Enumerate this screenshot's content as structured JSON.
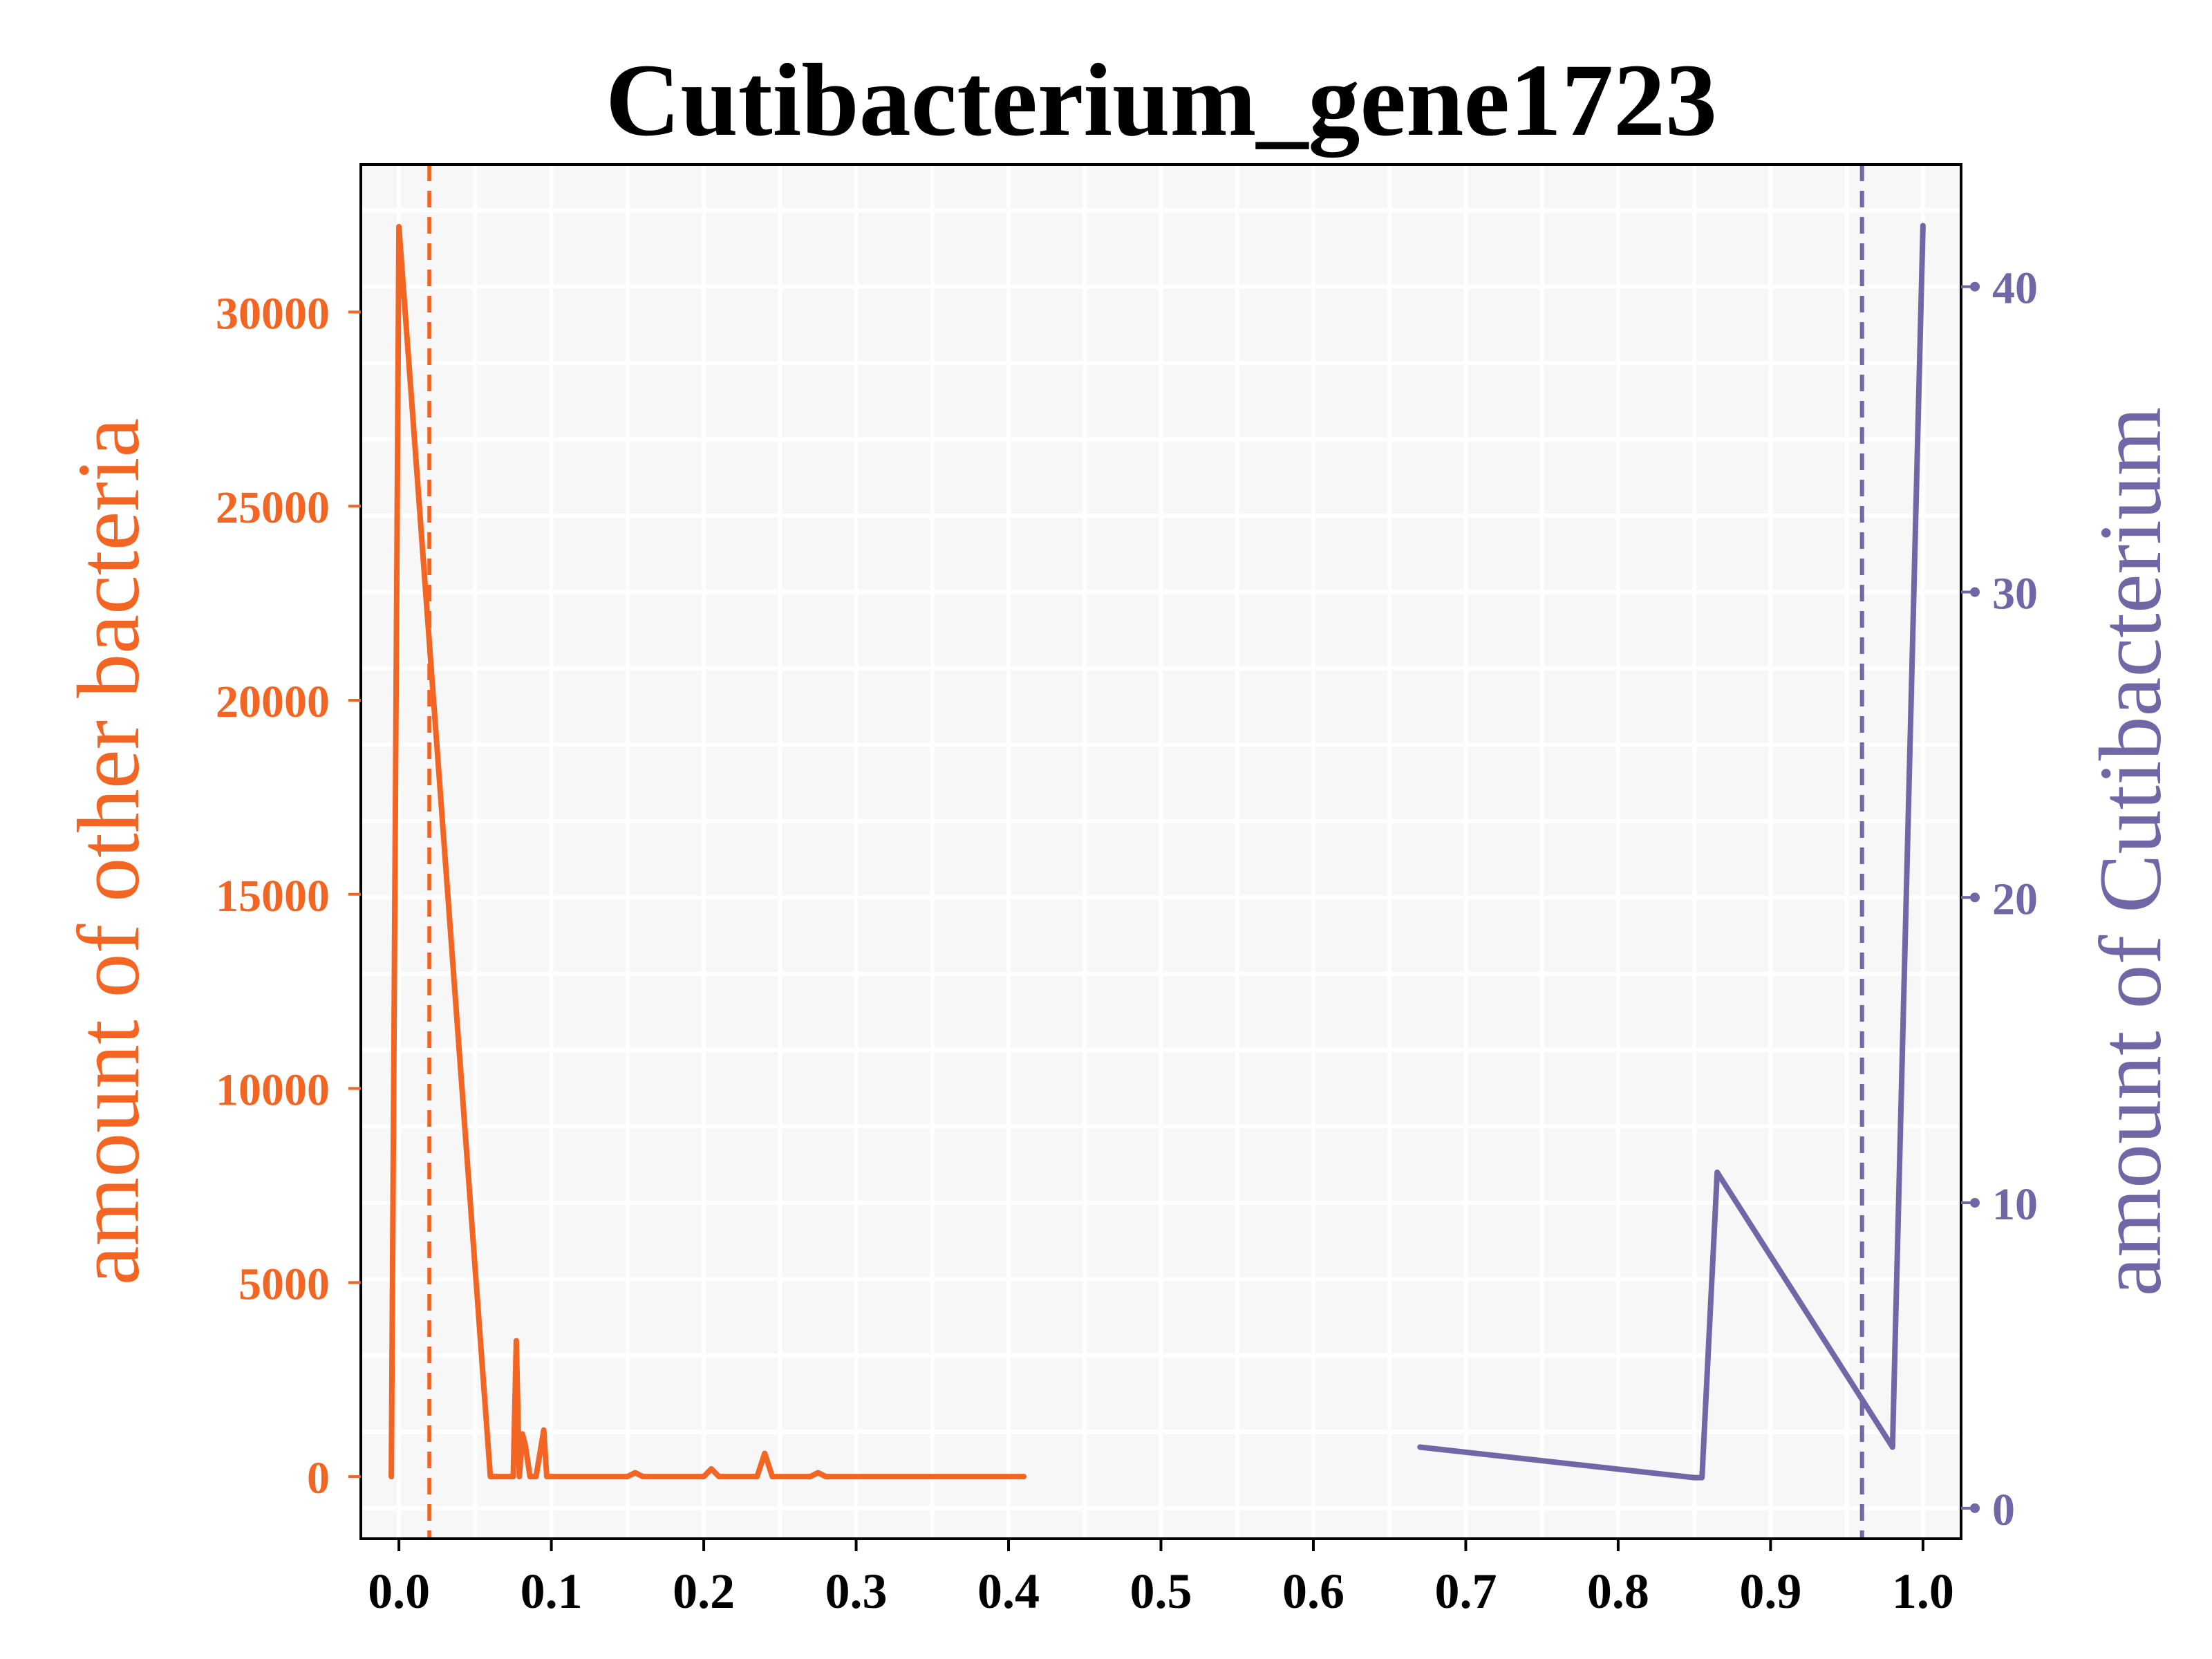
{
  "chart_data": {
    "type": "line",
    "title": "Cutibacterium_gene1723",
    "ylabel_left": "amount of other bacteria",
    "ylabel_right": "amount of Cutibacterium",
    "xlim": [
      -0.025,
      1.025
    ],
    "ylim_left": [
      -1600,
      33800
    ],
    "ylim_right": [
      -1.0,
      44.0
    ],
    "x_ticks": [
      {
        "value": 0.0,
        "label": "0.0"
      },
      {
        "value": 0.1,
        "label": "0.1"
      },
      {
        "value": 0.2,
        "label": "0.2"
      },
      {
        "value": 0.3,
        "label": "0.3"
      },
      {
        "value": 0.4,
        "label": "0.4"
      },
      {
        "value": 0.5,
        "label": "0.5"
      },
      {
        "value": 0.6,
        "label": "0.6"
      },
      {
        "value": 0.7,
        "label": "0.7"
      },
      {
        "value": 0.8,
        "label": "0.8"
      },
      {
        "value": 0.9,
        "label": "0.9"
      },
      {
        "value": 1.0,
        "label": "1.0"
      }
    ],
    "y_left_ticks": [
      {
        "value": 0,
        "label": "0"
      },
      {
        "value": 5000,
        "label": "5000"
      },
      {
        "value": 10000,
        "label": "10000"
      },
      {
        "value": 15000,
        "label": "15000"
      },
      {
        "value": 20000,
        "label": "20000"
      },
      {
        "value": 25000,
        "label": "25000"
      },
      {
        "value": 30000,
        "label": "30000"
      }
    ],
    "y_right_ticks": [
      {
        "value": 0,
        "label": "0"
      },
      {
        "value": 10,
        "label": "10"
      },
      {
        "value": 20,
        "label": "20"
      },
      {
        "value": 30,
        "label": "30"
      },
      {
        "value": 40,
        "label": "40"
      }
    ],
    "grid": true,
    "series": [
      {
        "axis": "left",
        "color": "#f26522",
        "x": [
          -0.005,
          0.0,
          0.06,
          0.075,
          0.077,
          0.079,
          0.081,
          0.083,
          0.086,
          0.09,
          0.095,
          0.097,
          0.1,
          0.15,
          0.155,
          0.16,
          0.2,
          0.205,
          0.21,
          0.235,
          0.24,
          0.245,
          0.27,
          0.275,
          0.28,
          0.41
        ],
        "y": [
          0,
          32200,
          0,
          0,
          3500,
          0,
          1100,
          800,
          0,
          0,
          1200,
          0,
          0,
          0,
          100,
          0,
          0,
          200,
          0,
          0,
          600,
          0,
          0,
          100,
          0,
          0
        ]
      },
      {
        "axis": "right",
        "color": "#6f67a6",
        "x": [
          0.67,
          0.85,
          0.855,
          0.865,
          0.98,
          1.0
        ],
        "y": [
          2.0,
          1.0,
          1.0,
          11.0,
          2.0,
          42.0
        ]
      }
    ],
    "vlines": [
      {
        "x": 0.02,
        "color": "#f26522"
      },
      {
        "x": 0.96,
        "color": "#6f67a6"
      }
    ]
  }
}
